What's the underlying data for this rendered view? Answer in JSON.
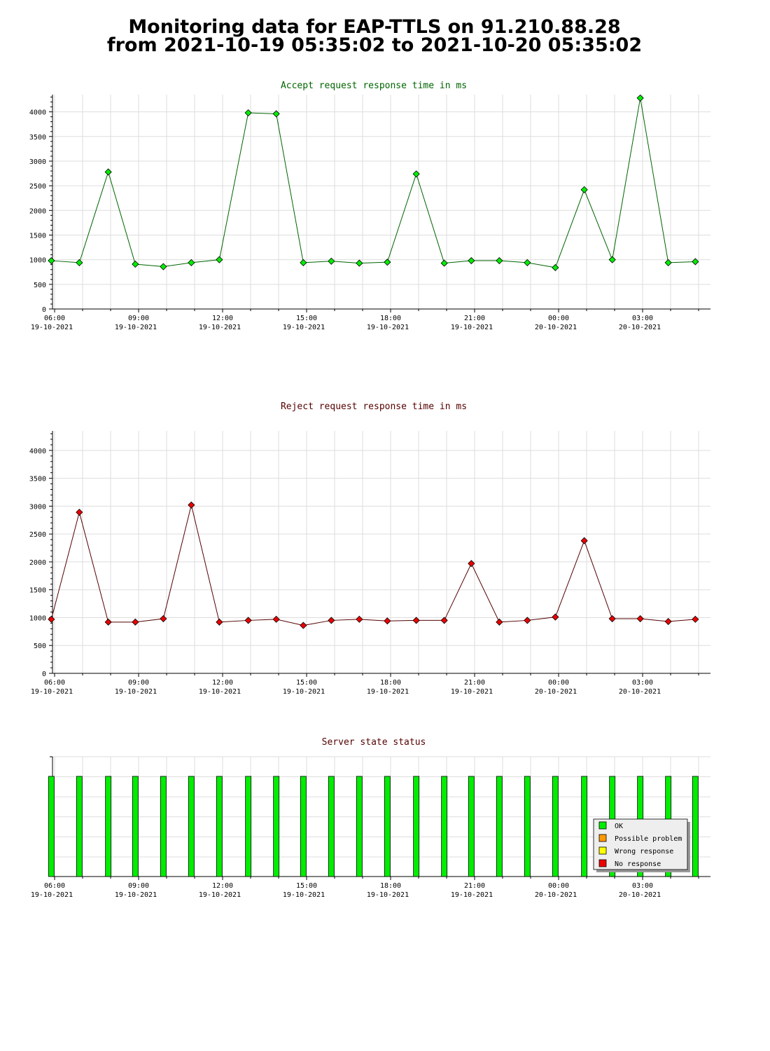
{
  "page": {
    "title_line1": "Monitoring data for EAP-TTLS on 91.210.88.28",
    "title_line2": "from 2021-10-19 05:35:02 to 2021-10-20 05:35:02"
  },
  "colors": {
    "accept_line": "#006400",
    "accept_point": "#00ee00",
    "reject_line": "#550000",
    "reject_point": "#ee0000",
    "ok": "#00ee00",
    "possible_problem": "#ff9900",
    "wrong_response": "#ffff00",
    "no_response": "#ee0000",
    "grid": "#dddddd"
  },
  "chart_data": [
    {
      "id": "accept",
      "type": "line",
      "title": "Accept request response time in ms",
      "xlabel": "",
      "ylabel": "",
      "ylim": [
        0,
        4350
      ],
      "yticks": [
        0,
        500,
        1000,
        1500,
        2000,
        2500,
        3000,
        3500,
        4000
      ],
      "grid": true,
      "x_tick_labels": [
        {
          "time": "06:00",
          "date": "19-10-2021"
        },
        {
          "time": "09:00",
          "date": "19-10-2021"
        },
        {
          "time": "12:00",
          "date": "19-10-2021"
        },
        {
          "time": "15:00",
          "date": "19-10-2021"
        },
        {
          "time": "18:00",
          "date": "19-10-2021"
        },
        {
          "time": "21:00",
          "date": "19-10-2021"
        },
        {
          "time": "00:00",
          "date": "20-10-2021"
        },
        {
          "time": "03:00",
          "date": "20-10-2021"
        }
      ],
      "x": [
        "05:53",
        "06:53",
        "07:55",
        "08:53",
        "09:53",
        "10:53",
        "11:53",
        "12:55",
        "13:55",
        "14:53",
        "15:53",
        "16:53",
        "17:53",
        "18:55",
        "19:55",
        "20:53",
        "21:53",
        "22:53",
        "23:53",
        "00:55",
        "01:55",
        "02:55",
        "03:55",
        "04:53"
      ],
      "values": [
        980,
        940,
        2780,
        910,
        860,
        940,
        1000,
        3980,
        3960,
        940,
        970,
        930,
        950,
        2740,
        930,
        980,
        980,
        940,
        840,
        2420,
        1000,
        4280,
        940,
        960
      ]
    },
    {
      "id": "reject",
      "type": "line",
      "title": "Reject request response time in ms",
      "xlabel": "",
      "ylabel": "",
      "ylim": [
        0,
        4350
      ],
      "yticks": [
        0,
        500,
        1000,
        1500,
        2000,
        2500,
        3000,
        3500,
        4000
      ],
      "grid": true,
      "x_tick_labels": [
        {
          "time": "06:00",
          "date": "19-10-2021"
        },
        {
          "time": "09:00",
          "date": "19-10-2021"
        },
        {
          "time": "12:00",
          "date": "19-10-2021"
        },
        {
          "time": "15:00",
          "date": "19-10-2021"
        },
        {
          "time": "18:00",
          "date": "19-10-2021"
        },
        {
          "time": "21:00",
          "date": "19-10-2021"
        },
        {
          "time": "00:00",
          "date": "20-10-2021"
        },
        {
          "time": "03:00",
          "date": "20-10-2021"
        }
      ],
      "x": [
        "05:53",
        "06:53",
        "07:55",
        "08:53",
        "09:53",
        "10:53",
        "11:53",
        "12:55",
        "13:55",
        "14:53",
        "15:53",
        "16:53",
        "17:53",
        "18:55",
        "19:55",
        "20:53",
        "21:53",
        "22:53",
        "23:53",
        "00:55",
        "01:55",
        "02:55",
        "03:55",
        "04:53"
      ],
      "values": [
        970,
        2890,
        920,
        920,
        980,
        3020,
        920,
        950,
        970,
        860,
        950,
        970,
        940,
        950,
        950,
        1970,
        920,
        950,
        1010,
        2380,
        980,
        980,
        930,
        970
      ]
    },
    {
      "id": "status",
      "type": "bar",
      "title": "Server state status",
      "grid": true,
      "x_tick_labels": [
        {
          "time": "06:00",
          "date": "19-10-2021"
        },
        {
          "time": "09:00",
          "date": "19-10-2021"
        },
        {
          "time": "12:00",
          "date": "19-10-2021"
        },
        {
          "time": "15:00",
          "date": "19-10-2021"
        },
        {
          "time": "18:00",
          "date": "19-10-2021"
        },
        {
          "time": "21:00",
          "date": "19-10-2021"
        },
        {
          "time": "00:00",
          "date": "20-10-2021"
        },
        {
          "time": "03:00",
          "date": "20-10-2021"
        }
      ],
      "x": [
        "05:53",
        "06:53",
        "07:55",
        "08:53",
        "09:53",
        "10:53",
        "11:53",
        "12:55",
        "13:55",
        "14:53",
        "15:53",
        "16:53",
        "17:53",
        "18:55",
        "19:55",
        "20:53",
        "21:53",
        "22:53",
        "23:53",
        "00:55",
        "01:55",
        "02:55",
        "03:55",
        "04:53"
      ],
      "states": [
        "OK",
        "OK",
        "OK",
        "OK",
        "OK",
        "OK",
        "OK",
        "OK",
        "OK",
        "OK",
        "OK",
        "OK",
        "OK",
        "OK",
        "OK",
        "OK",
        "OK",
        "OK",
        "OK",
        "OK",
        "OK",
        "OK",
        "OK",
        "OK"
      ],
      "legend_placement": "bottom-right",
      "legend": [
        {
          "label": "OK",
          "color": "#00ee00"
        },
        {
          "label": "Possible problem",
          "color": "#ff9900"
        },
        {
          "label": "Wrong response",
          "color": "#ffff00"
        },
        {
          "label": "No response",
          "color": "#ee0000"
        }
      ]
    }
  ]
}
